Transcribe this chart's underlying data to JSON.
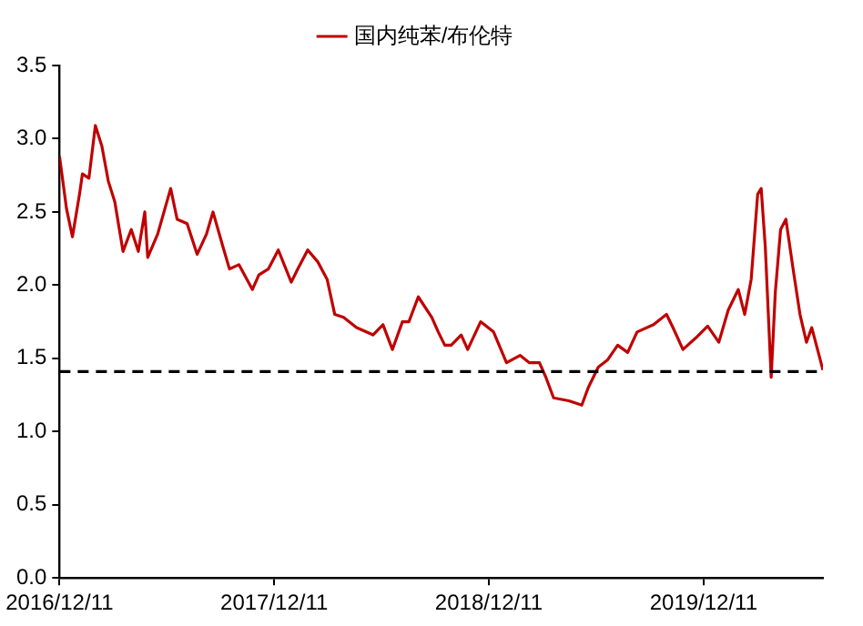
{
  "chart_data": {
    "type": "line",
    "legend": "top",
    "grid": false,
    "marker": "none",
    "line_style": "solid",
    "xlim": [
      "2016-12-11",
      "2020-07-01"
    ],
    "xticks": [
      {
        "value": "2016-12-11",
        "label": "2016/12/11"
      },
      {
        "value": "2017-12-11",
        "label": "2017/12/11"
      },
      {
        "value": "2018-12-11",
        "label": "2018/12/11"
      },
      {
        "value": "2019-12-11",
        "label": "2019/12/11"
      }
    ],
    "ylim": [
      0,
      3.5
    ],
    "yticks": [
      {
        "value": 0,
        "label": "0.0"
      },
      0.5,
      {
        "value": 1,
        "label": "1.0"
      },
      1.5,
      {
        "value": 2,
        "label": "2.0"
      },
      2.5,
      {
        "value": 3,
        "label": "3.0"
      },
      3.5
    ],
    "ref_lines": [
      {
        "axis": "y",
        "value": 1.41,
        "color": "#000000",
        "line_style": "dashed"
      }
    ],
    "series": [
      {
        "name": "国内纯苯/布伦特",
        "color": "#c00000",
        "x": [
          "2016-12-11",
          "2016-12-23",
          "2017-01-02",
          "2017-01-14",
          "2017-01-19",
          "2017-01-30",
          "2017-02-10",
          "2017-02-21",
          "2017-03-04",
          "2017-03-15",
          "2017-03-29",
          "2017-04-12",
          "2017-04-24",
          "2017-05-05",
          "2017-05-10",
          "2017-05-27",
          "2017-06-18",
          "2017-06-29",
          "2017-07-16",
          "2017-08-02",
          "2017-08-18",
          "2017-08-29",
          "2017-09-15",
          "2017-09-26",
          "2017-10-12",
          "2017-11-04",
          "2017-11-15",
          "2017-12-01",
          "2017-12-18",
          "2018-01-09",
          "2018-01-20",
          "2018-02-06",
          "2018-02-23",
          "2018-03-11",
          "2018-03-24",
          "2018-04-08",
          "2018-04-30",
          "2018-05-28",
          "2018-06-14",
          "2018-06-30",
          "2018-07-17",
          "2018-07-28",
          "2018-08-13",
          "2018-09-05",
          "2018-09-16",
          "2018-09-27",
          "2018-10-08",
          "2018-10-25",
          "2018-11-05",
          "2018-11-27",
          "2018-12-19",
          "2019-01-10",
          "2019-02-02",
          "2019-02-18",
          "2019-03-07",
          "2019-03-18",
          "2019-03-31",
          "2019-04-26",
          "2019-05-18",
          "2019-05-29",
          "2019-06-15",
          "2019-07-01",
          "2019-07-18",
          "2019-08-04",
          "2019-08-20",
          "2019-09-17",
          "2019-10-09",
          "2019-10-20",
          "2019-11-06",
          "2019-11-28",
          "2019-12-18",
          "2020-01-06",
          "2020-01-22",
          "2020-02-08",
          "2020-02-19",
          "2020-03-01",
          "2020-03-12",
          "2020-03-18",
          "2020-03-25",
          "2020-04-04",
          "2020-04-11",
          "2020-04-20",
          "2020-04-29",
          "2020-05-12",
          "2020-05-23",
          "2020-06-03",
          "2020-06-12",
          "2020-07-01"
        ],
        "values": [
          2.88,
          2.52,
          2.33,
          2.62,
          2.76,
          2.73,
          3.09,
          2.95,
          2.71,
          2.57,
          2.23,
          2.38,
          2.23,
          2.5,
          2.19,
          2.35,
          2.66,
          2.45,
          2.42,
          2.21,
          2.35,
          2.5,
          2.26,
          2.11,
          2.14,
          1.97,
          2.07,
          2.11,
          2.24,
          2.02,
          2.11,
          2.24,
          2.16,
          2.04,
          1.8,
          1.78,
          1.71,
          1.66,
          1.73,
          1.56,
          1.75,
          1.75,
          1.92,
          1.78,
          1.68,
          1.59,
          1.59,
          1.66,
          1.56,
          1.75,
          1.68,
          1.47,
          1.52,
          1.47,
          1.47,
          1.37,
          1.23,
          1.21,
          1.18,
          1.3,
          1.44,
          1.49,
          1.59,
          1.54,
          1.68,
          1.73,
          1.8,
          1.71,
          1.56,
          1.64,
          1.72,
          1.61,
          1.83,
          1.97,
          1.8,
          2.04,
          2.62,
          2.66,
          2.26,
          1.37,
          1.95,
          2.38,
          2.45,
          2.09,
          1.8,
          1.61,
          1.71,
          1.42
        ]
      }
    ]
  }
}
